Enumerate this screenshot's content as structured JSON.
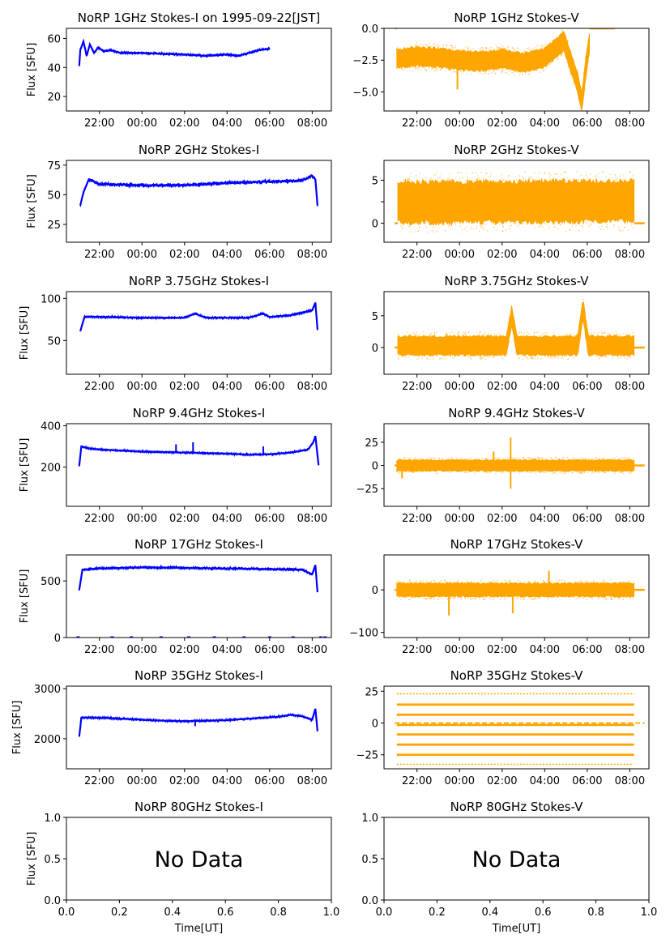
{
  "figure": {
    "xlabel": "Time[UT]",
    "ylabel": "Flux [SFU]",
    "no_data_text": "No Data",
    "time_ticks": [
      "22:00",
      "00:00",
      "02:00",
      "04:00",
      "06:00",
      "08:00"
    ],
    "colors": {
      "stokes_i": "#0000ff",
      "stokes_v": "#ffa500",
      "axes": "#000000"
    }
  },
  "chart_data": [
    {
      "id": "i1",
      "type": "line",
      "title": "NoRP 1GHz Stokes-I on 1995-09-22[JST]",
      "ylabel": "Flux [SFU]",
      "ylim": [
        10,
        67
      ],
      "yticks": [
        20,
        40,
        60
      ],
      "noise": 1.3,
      "start": 21.05,
      "end": 30.0,
      "trace": [
        [
          21.05,
          41
        ],
        [
          21.1,
          52
        ],
        [
          21.25,
          58
        ],
        [
          21.4,
          48
        ],
        [
          21.55,
          56
        ],
        [
          21.75,
          50
        ],
        [
          21.95,
          54
        ],
        [
          22.2,
          51
        ],
        [
          22.5,
          52
        ],
        [
          23,
          50
        ],
        [
          24,
          50
        ],
        [
          25,
          49.5
        ],
        [
          26,
          49
        ],
        [
          27,
          48
        ],
        [
          28,
          49
        ],
        [
          28.5,
          48
        ],
        [
          29,
          50
        ],
        [
          29.5,
          52
        ],
        [
          30,
          53
        ]
      ]
    },
    {
      "id": "v1",
      "type": "scatter",
      "title": "NoRP 1GHz Stokes-V",
      "ylim": [
        -6.5,
        0
      ],
      "yticks": [
        0.0,
        -2.5,
        -5.0
      ],
      "yticklabels": [
        "0.0",
        "−2.5",
        "−5.0"
      ],
      "noise": 0.75,
      "start": 21.05,
      "end": 30.1,
      "flat_value": 0,
      "flat_before": 20.95,
      "flat_after": 31.3,
      "trace": [
        [
          21.05,
          -2.4
        ],
        [
          22,
          -2.2
        ],
        [
          23,
          -2.3
        ],
        [
          24,
          -2.5
        ],
        [
          25,
          -2.6
        ],
        [
          26,
          -2.4
        ],
        [
          27,
          -2.7
        ],
        [
          28,
          -2.3
        ],
        [
          28.6,
          -1.5
        ],
        [
          28.9,
          -1.0
        ],
        [
          29.2,
          -2.5
        ],
        [
          29.5,
          -4
        ],
        [
          29.75,
          -5.8
        ],
        [
          29.9,
          -3.5
        ],
        [
          30.1,
          -1.2
        ]
      ],
      "spikes": [
        [
          23.9,
          -4.8
        ]
      ]
    },
    {
      "id": "i2",
      "type": "line",
      "title": "NoRP 2GHz Stokes-I",
      "ylabel": "Flux [SFU]",
      "ylim": [
        10,
        79
      ],
      "yticks": [
        25,
        50,
        75
      ],
      "noise": 2.2,
      "start": 21.1,
      "end": 32.25,
      "trace": [
        [
          21.1,
          41
        ],
        [
          21.25,
          52
        ],
        [
          21.5,
          63
        ],
        [
          21.75,
          61
        ],
        [
          22,
          59
        ],
        [
          24,
          58
        ],
        [
          26,
          58
        ],
        [
          28,
          60
        ],
        [
          30,
          61
        ],
        [
          31.5,
          62
        ],
        [
          32,
          66
        ],
        [
          32.15,
          63
        ],
        [
          32.25,
          41
        ]
      ]
    },
    {
      "id": "v2",
      "type": "scatter",
      "title": "NoRP 2GHz Stokes-V",
      "ylim": [
        -2.2,
        7.3
      ],
      "yticks": [
        0,
        2.5,
        5
      ],
      "yticklabels": [
        "0",
        "",
        "5"
      ],
      "noise": 2.4,
      "start": 21.1,
      "end": 32.2,
      "flat_value": 0,
      "flat_before": 20.95,
      "flat_after": 32.7,
      "trace": [
        [
          21.1,
          2.4
        ],
        [
          32.2,
          2.6
        ]
      ],
      "spikes": []
    },
    {
      "id": "i3",
      "type": "line",
      "title": "NoRP 3.75GHz Stokes-I",
      "ylabel": "Flux [SFU]",
      "ylim": [
        10,
        108
      ],
      "yticks": [
        50,
        100
      ],
      "noise": 1.8,
      "start": 21.1,
      "end": 32.25,
      "trace": [
        [
          21.1,
          61
        ],
        [
          21.3,
          78
        ],
        [
          22,
          78
        ],
        [
          24,
          77
        ],
        [
          26,
          77
        ],
        [
          26.5,
          82
        ],
        [
          27,
          77
        ],
        [
          29,
          77
        ],
        [
          29.7,
          82
        ],
        [
          30,
          78
        ],
        [
          31,
          80
        ],
        [
          32,
          86
        ],
        [
          32.15,
          95
        ],
        [
          32.25,
          63
        ]
      ]
    },
    {
      "id": "v3",
      "type": "scatter",
      "title": "NoRP 3.75GHz Stokes-V",
      "ylim": [
        -4.2,
        8.8
      ],
      "yticks": [
        0,
        5
      ],
      "noise": 1.5,
      "start": 21.1,
      "end": 32.2,
      "flat_value": 0,
      "flat_before": 20.95,
      "flat_after": 32.7,
      "trace": [
        [
          21.1,
          0.3
        ],
        [
          26.2,
          0.3
        ],
        [
          26.45,
          5
        ],
        [
          26.7,
          0.3
        ],
        [
          29.55,
          0.3
        ],
        [
          29.8,
          6.2
        ],
        [
          30.05,
          0.3
        ],
        [
          32.2,
          0.3
        ]
      ],
      "spikes": []
    },
    {
      "id": "i4",
      "type": "line",
      "title": "NoRP 9.4GHz Stokes-I",
      "ylabel": "Flux [SFU]",
      "ylim": [
        10,
        410
      ],
      "yticks": [
        200,
        400
      ],
      "noise": 6,
      "start": 21.05,
      "end": 32.3,
      "trace": [
        [
          21.05,
          205
        ],
        [
          21.15,
          300
        ],
        [
          21.5,
          290
        ],
        [
          22,
          285
        ],
        [
          24,
          275
        ],
        [
          26,
          270
        ],
        [
          28,
          265
        ],
        [
          29,
          260
        ],
        [
          30,
          262
        ],
        [
          31,
          270
        ],
        [
          31.8,
          285
        ],
        [
          32.05,
          320
        ],
        [
          32.15,
          350
        ],
        [
          32.3,
          210
        ]
      ],
      "spikes": [
        [
          25.6,
          310
        ],
        [
          26.4,
          320
        ],
        [
          29.7,
          300
        ]
      ]
    },
    {
      "id": "v4",
      "type": "scatter",
      "title": "NoRP 9.4GHz Stokes-V",
      "ylim": [
        -44,
        45
      ],
      "yticks": [
        -25,
        0,
        25
      ],
      "yticklabels": [
        "−25",
        "0",
        "25"
      ],
      "noise": 6,
      "start": 21.05,
      "end": 32.2,
      "flat_value": 0,
      "flat_before": 20.95,
      "flat_after": 32.7,
      "trace": [
        [
          21.05,
          0
        ],
        [
          32.2,
          0
        ]
      ],
      "spikes": [
        [
          21.3,
          -14
        ],
        [
          25.6,
          15
        ],
        [
          26.4,
          30
        ],
        [
          26.4,
          -25
        ]
      ]
    },
    {
      "id": "i5",
      "type": "line",
      "title": "NoRP 17GHz Stokes-I",
      "ylabel": "Flux [SFU]",
      "ylim": [
        0,
        730
      ],
      "yticks": [
        0,
        500
      ],
      "noise": 18,
      "start": 21.05,
      "end": 32.25,
      "trace": [
        [
          21.05,
          420
        ],
        [
          21.2,
          600
        ],
        [
          22,
          610
        ],
        [
          24,
          620
        ],
        [
          26,
          615
        ],
        [
          28,
          610
        ],
        [
          30,
          605
        ],
        [
          31.5,
          600
        ],
        [
          32,
          560
        ],
        [
          32.15,
          640
        ],
        [
          32.25,
          400
        ]
      ],
      "baseline": 0
    },
    {
      "id": "v5",
      "type": "scatter",
      "title": "NoRP 17GHz Stokes-V",
      "ylim": [
        -112,
        82
      ],
      "yticks": [
        -100,
        0
      ],
      "yticklabels": [
        "−100",
        "0"
      ],
      "noise": 16,
      "start": 21.05,
      "end": 32.2,
      "flat_value": 0,
      "flat_before": 20.95,
      "flat_after": 32.7,
      "trace": [
        [
          21.05,
          0
        ],
        [
          32.2,
          0
        ]
      ],
      "spikes": [
        [
          28.2,
          45
        ],
        [
          26.5,
          -55
        ],
        [
          23.5,
          -60
        ]
      ]
    },
    {
      "id": "i6",
      "type": "line",
      "title": "NoRP 35GHz Stokes-I",
      "ylabel": "Flux [SFU]",
      "ylim": [
        1400,
        3050
      ],
      "yticks": [
        2000,
        3000
      ],
      "noise": 28,
      "start": 21.05,
      "end": 32.25,
      "trace": [
        [
          21.05,
          2040
        ],
        [
          21.15,
          2420
        ],
        [
          22,
          2420
        ],
        [
          23,
          2400
        ],
        [
          24,
          2380
        ],
        [
          25,
          2360
        ],
        [
          26,
          2350
        ],
        [
          27,
          2360
        ],
        [
          28,
          2370
        ],
        [
          29,
          2400
        ],
        [
          30.5,
          2440
        ],
        [
          31,
          2480
        ],
        [
          31.5,
          2450
        ],
        [
          32,
          2380
        ],
        [
          32.15,
          2600
        ],
        [
          32.25,
          2150
        ]
      ],
      "spikes": [
        [
          26.5,
          2250
        ]
      ]
    },
    {
      "id": "v6",
      "type": "levels",
      "title": "NoRP 35GHz Stokes-V",
      "ylim": [
        -36,
        29
      ],
      "yticks": [
        -25,
        0,
        25
      ],
      "yticklabels": [
        "−25",
        "0",
        "25"
      ],
      "start": 21.05,
      "end": 32.2,
      "levels": [
        23,
        14.5,
        6.5,
        -1.5,
        -9,
        -17,
        -25,
        -32.5
      ]
    },
    {
      "id": "i7",
      "type": "empty",
      "title": "NoRP 80GHz Stokes-I",
      "ylabel": "Flux [SFU]",
      "xlabel": "Time[UT]",
      "ylim": [
        0,
        1
      ],
      "xlim": [
        0,
        1
      ],
      "yticks": [
        "0.0",
        "0.5",
        "1.0"
      ],
      "xticks": [
        "0.0",
        "0.2",
        "0.4",
        "0.6",
        "0.8",
        "1.0"
      ]
    },
    {
      "id": "v7",
      "type": "empty",
      "title": "NoRP 80GHz Stokes-V",
      "xlabel": "Time[UT]",
      "ylim": [
        0,
        1
      ],
      "xlim": [
        0,
        1
      ],
      "yticks": [
        "0.0",
        "0.5",
        "1.0"
      ],
      "xticks": [
        "0.0",
        "0.2",
        "0.4",
        "0.6",
        "0.8",
        "1.0"
      ]
    }
  ]
}
